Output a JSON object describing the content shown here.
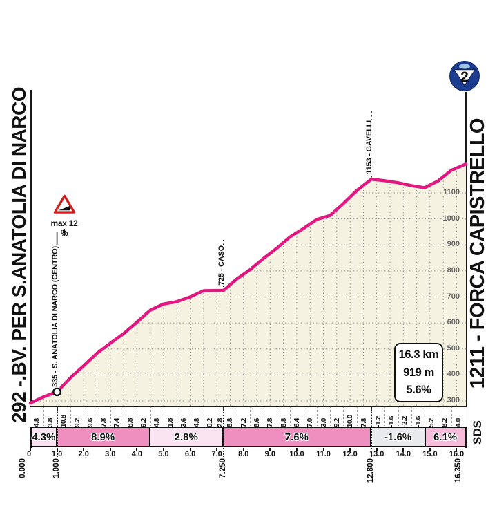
{
  "header": {
    "start_label": "292 -.BV. PER S.ANATOLIA DI NARCO",
    "end_label": "1211 - FORCA CAPISTRELLO",
    "category_badge": "2"
  },
  "summary_box": {
    "distance": "16.3 km",
    "elevation_gain": "919 m",
    "avg_gradient": "5.6%"
  },
  "max_gradient_label": "max 12 %",
  "credit": "SDS",
  "colors": {
    "profile_line": "#e0187f",
    "profile_fill": "#f6f2e2",
    "gridline": "#9a9a9a",
    "segment_strong_pink": "#ef8fc0",
    "segment_light_pink": "#fbe4f1",
    "segment_medium_pink": "#f6bcda",
    "segment_gray": "#e9eaee",
    "badge_blue": "#1c3c8f",
    "warning_red": "#cf1f1f"
  },
  "chart_data": {
    "type": "area",
    "x_unit": "km",
    "y_unit": "m",
    "x_range": [
      0,
      16.35
    ],
    "elevation_ticks": [
      300,
      400,
      500,
      600,
      700,
      800,
      900,
      1000,
      1100
    ],
    "profile_points": [
      [
        0,
        292
      ],
      [
        0.5,
        316
      ],
      [
        1,
        335
      ],
      [
        1.5,
        389
      ],
      [
        2,
        435
      ],
      [
        2.5,
        483
      ],
      [
        3,
        522
      ],
      [
        3.5,
        559
      ],
      [
        4,
        603
      ],
      [
        4.5,
        649
      ],
      [
        5,
        673
      ],
      [
        5.5,
        682
      ],
      [
        6,
        700
      ],
      [
        6.5,
        724
      ],
      [
        7,
        725
      ],
      [
        7.25,
        725
      ],
      [
        7.75,
        769
      ],
      [
        8.25,
        805
      ],
      [
        8.75,
        848
      ],
      [
        9.25,
        887
      ],
      [
        9.75,
        931
      ],
      [
        10.25,
        963
      ],
      [
        10.75,
        998
      ],
      [
        11.25,
        1013
      ],
      [
        11.75,
        1059
      ],
      [
        12.25,
        1109
      ],
      [
        12.8,
        1153
      ],
      [
        13.3,
        1147
      ],
      [
        13.8,
        1139
      ],
      [
        14.3,
        1128
      ],
      [
        14.8,
        1120
      ],
      [
        15.3,
        1146
      ],
      [
        15.8,
        1187
      ],
      [
        16.35,
        1211
      ]
    ],
    "waypoints": [
      {
        "km": 1.0,
        "elevation": 335,
        "label": "335 - S. ANATOLIA DI NARCO (CENTRO)",
        "marker": "circle",
        "line": "solid"
      },
      {
        "km": 7.25,
        "elevation": 725,
        "label": "725 - CASO",
        "line": "dotted"
      },
      {
        "km": 12.8,
        "elevation": 1153,
        "label": "1153 - GAVELLI",
        "line": "dotted"
      }
    ],
    "gradient_cells": [
      {
        "value": "4.8",
        "km": 0.5
      },
      {
        "value": "3.8",
        "km": 0.5
      },
      {
        "value": "10.8",
        "km": 0.5
      },
      {
        "value": "9.2",
        "km": 0.5
      },
      {
        "value": "9.6",
        "km": 0.5
      },
      {
        "value": "7.8",
        "km": 0.5
      },
      {
        "value": "7.4",
        "km": 0.5
      },
      {
        "value": "8.8",
        "km": 0.5
      },
      {
        "value": "9.2",
        "km": 0.5
      },
      {
        "value": "4.8",
        "km": 0.5
      },
      {
        "value": "1.8",
        "km": 0.5
      },
      {
        "value": "3.6",
        "km": 0.5
      },
      {
        "value": "4.8",
        "km": 0.5
      },
      {
        "value": "0.2",
        "km": 0.5
      },
      {
        "value": "2.8",
        "km": 0.25
      },
      {
        "value": "8.8",
        "km": 0.5
      },
      {
        "value": "7.2",
        "km": 0.5
      },
      {
        "value": "8.6",
        "km": 0.5
      },
      {
        "value": "7.8",
        "km": 0.5
      },
      {
        "value": "8.8",
        "km": 0.5
      },
      {
        "value": "6.4",
        "km": 0.5
      },
      {
        "value": "7.0",
        "km": 0.5
      },
      {
        "value": "3.0",
        "km": 0.5
      },
      {
        "value": "9.2",
        "km": 0.5
      },
      {
        "value": "10.0",
        "km": 0.5
      },
      {
        "value": "7.8",
        "km": 0.55
      },
      {
        "value": "-1.2",
        "km": 0.5
      },
      {
        "value": "-1.6",
        "km": 0.5
      },
      {
        "value": "-2.2",
        "km": 0.5
      },
      {
        "value": "-1.6",
        "km": 0.5
      },
      {
        "value": "5.2",
        "km": 0.5
      },
      {
        "value": "8.2",
        "km": 0.5
      },
      {
        "value": "4.0",
        "km": 0.55
      }
    ],
    "gradient_segments": [
      {
        "label": "4.3%",
        "from": 0,
        "to": 1.0,
        "fill": "light"
      },
      {
        "label": "8.9%",
        "from": 1.0,
        "to": 4.5,
        "fill": "strong"
      },
      {
        "label": "2.8%",
        "from": 4.5,
        "to": 7.25,
        "fill": "light"
      },
      {
        "label": "7.6%",
        "from": 7.25,
        "to": 12.8,
        "fill": "strong"
      },
      {
        "label": "-1.6%",
        "from": 12.8,
        "to": 14.85,
        "fill": "gray"
      },
      {
        "label": "6.1%",
        "from": 14.85,
        "to": 16.35,
        "fill": "medium"
      }
    ],
    "x_ticks": [
      {
        "km": 0,
        "label": "0"
      },
      {
        "km": 1,
        "label": "1.0"
      },
      {
        "km": 2,
        "label": "2.0"
      },
      {
        "km": 3,
        "label": "3.0"
      },
      {
        "km": 4,
        "label": "4.0"
      },
      {
        "km": 5,
        "label": "5.0"
      },
      {
        "km": 6,
        "label": "6.0"
      },
      {
        "km": 7,
        "label": "7.0"
      },
      {
        "km": 8,
        "label": "8.0"
      },
      {
        "km": 9,
        "label": "9.0"
      },
      {
        "km": 10,
        "label": "10.0"
      },
      {
        "km": 11,
        "label": "11.0"
      },
      {
        "km": 12,
        "label": "12.0"
      },
      {
        "km": 13,
        "label": "13.0"
      },
      {
        "km": 14,
        "label": "14.0"
      },
      {
        "km": 15,
        "label": "15.0"
      },
      {
        "km": 16,
        "label": "16.0"
      }
    ],
    "km_markers": [
      {
        "km": 0,
        "label": "0.000"
      },
      {
        "km": 1,
        "label": "1.000"
      },
      {
        "km": 7.25,
        "label": "7.250"
      },
      {
        "km": 12.8,
        "label": "12.800"
      },
      {
        "km": 16.35,
        "label": "16.350"
      }
    ]
  }
}
